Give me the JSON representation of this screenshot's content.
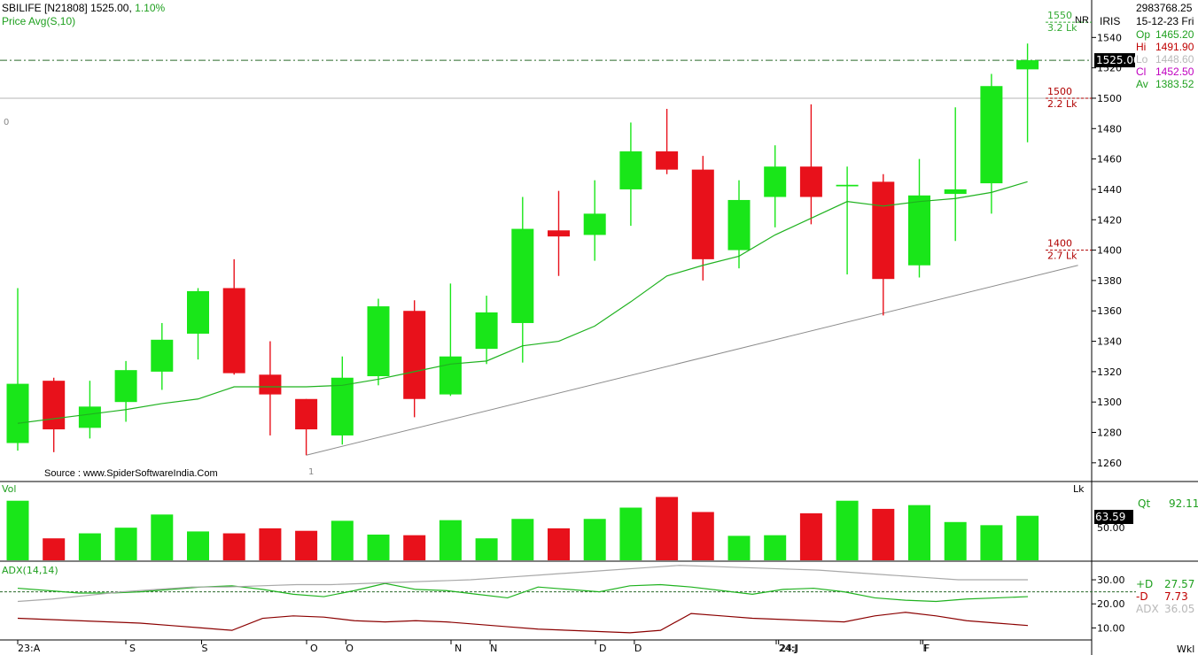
{
  "header": {
    "symbol": "SBILIFE [N21808]",
    "price": "1525.00,",
    "change": "1.10%",
    "indicator": "Price Avg(S,10)"
  },
  "info": {
    "volume_total": "2983768.25",
    "date": "15-12-23 Fri",
    "brand": "IRIS",
    "flag": "NR",
    "op_label": "Op",
    "op_value": "1465.20",
    "hi_label": "Hi",
    "hi_value": "1491.90",
    "lo_label": "Lo",
    "lo_value": "1448.60",
    "cl_label": "Cl",
    "cl_value": "1452.50",
    "av_label": "Av",
    "av_value": "1383.52"
  },
  "source": "Source : www.SpiderSoftwareIndia.Com",
  "colors": {
    "up": "#19e619",
    "down": "#e8111b",
    "ma": "#1fb21f",
    "trend": "#8c8c8c"
  },
  "chart_data": [
    {
      "type": "candlestick",
      "series": [
        {
          "name": "SBILIFE"
        }
      ],
      "x": [
        "23:A",
        "",
        "",
        "",
        "",
        "S",
        "",
        "",
        "",
        "O",
        "",
        "",
        "",
        "N",
        "",
        "",
        "",
        "D",
        "",
        "",
        "",
        "24:J",
        "",
        "",
        "",
        "F",
        "",
        "",
        ""
      ],
      "open": [
        1273,
        1314,
        1283,
        1300,
        1320,
        1345,
        1375,
        1318,
        1302,
        1278,
        1317,
        1360,
        1305,
        1335,
        1352,
        1413,
        1410,
        1440,
        1465,
        1453,
        1400,
        1435,
        1455,
        1442,
        1445,
        1390,
        1437,
        1444,
        1519
      ],
      "high": [
        1375,
        1316,
        1314,
        1327,
        1352,
        1375,
        1394,
        1340,
        1302,
        1330,
        1368,
        1367,
        1378,
        1370,
        1435,
        1439,
        1446,
        1484,
        1493,
        1462,
        1446,
        1469,
        1496,
        1455,
        1450,
        1460,
        1494,
        1516,
        1536
      ],
      "low": [
        1268,
        1267,
        1276,
        1287,
        1308,
        1328,
        1318,
        1278,
        1265,
        1272,
        1311,
        1290,
        1304,
        1325,
        1326,
        1383,
        1393,
        1416,
        1450,
        1380,
        1388,
        1415,
        1417,
        1384,
        1357,
        1382,
        1406,
        1424,
        1471
      ],
      "close": [
        1312,
        1282,
        1297,
        1321,
        1341,
        1373,
        1319,
        1305,
        1282,
        1316,
        1363,
        1302,
        1330,
        1359,
        1414,
        1409,
        1424,
        1465,
        1453,
        1394,
        1433,
        1455,
        1435,
        1443,
        1381,
        1436,
        1440,
        1508,
        1525
      ],
      "ma10": [
        1286,
        1289,
        1292,
        1295,
        1299,
        1302,
        1310,
        1310,
        1310,
        1311,
        1315,
        1320,
        1325,
        1327,
        1337,
        1340,
        1350,
        1366,
        1383,
        1390,
        1396,
        1410,
        1421,
        1432,
        1429,
        1432,
        1434,
        1438,
        1445
      ],
      "ylim": [
        1250,
        1560
      ],
      "yticks": [
        1260,
        1280,
        1300,
        1320,
        1340,
        1360,
        1380,
        1400,
        1420,
        1440,
        1460,
        1480,
        1500,
        1520,
        1540
      ],
      "trendline": {
        "from_x": 8,
        "from_y": 1265,
        "to_x": 29.4,
        "to_y": 1390
      },
      "levels": [
        {
          "price": 1550,
          "label": "1550",
          "sub": "3.2 Lk",
          "color": "#33aa33"
        },
        {
          "price": 1500,
          "label": "1500",
          "sub": "2.2 Lk",
          "color": "#b00000"
        },
        {
          "price": 1400,
          "label": "1400",
          "sub": "2.7 Lk",
          "color": "#b00000"
        }
      ],
      "current_price": "1525.00",
      "pivot_labels": [
        "0",
        "1"
      ]
    },
    {
      "type": "bar",
      "name": "Vol",
      "unit": "Lk",
      "values": [
        9.5,
        3.5,
        4.3,
        5.2,
        7.3,
        4.6,
        4.3,
        5.1,
        4.7,
        6.3,
        4.1,
        4.0,
        6.4,
        3.5,
        6.6,
        5.1,
        6.6,
        8.4,
        10.1,
        7.7,
        3.9,
        4.0,
        7.5,
        9.5,
        8.2,
        8.8,
        6.1,
        5.6,
        7.1
      ],
      "ylim": [
        0,
        12
      ],
      "qt_label": "Qt",
      "qt_value": "92.11",
      "current_box": "63.59",
      "ytick": "50.00"
    },
    {
      "type": "line",
      "name": "ADX(14,14)",
      "series": [
        {
          "name": "+D",
          "value": "27.57",
          "color": "#1fb21f",
          "values": [
            26.5,
            25.5,
            24.5,
            24.5,
            25,
            26,
            27,
            27.5,
            26,
            24,
            23,
            25.5,
            28.5,
            26,
            25.5,
            24,
            22.5,
            27,
            26,
            25,
            27.5,
            28,
            27,
            25.5,
            24,
            26,
            26.5,
            25,
            22.5,
            21.5,
            21,
            22,
            22.5,
            23
          ]
        },
        {
          "name": "-D",
          "value": "7.73",
          "color": "#8b0000",
          "values": [
            14,
            13.5,
            13,
            12.5,
            12,
            11,
            10,
            9,
            14,
            15,
            14.5,
            13,
            12.5,
            13,
            12.5,
            11.5,
            10.5,
            9.5,
            9,
            8.5,
            8,
            9,
            16,
            15,
            14,
            13.5,
            13,
            12.5,
            15,
            16.5,
            15,
            13,
            12,
            11
          ]
        },
        {
          "name": "ADX",
          "value": "36.05",
          "color": "#a9a9a9",
          "values": [
            21,
            22,
            23.5,
            25,
            26,
            27,
            27,
            27.5,
            28,
            28,
            28.5,
            29,
            29.5,
            30,
            31,
            32,
            33,
            34,
            35,
            36,
            35.5,
            35,
            34.5,
            34,
            33,
            32,
            31,
            30,
            30,
            30
          ]
        }
      ],
      "ylim": [
        5,
        37
      ],
      "yticks": [
        "10.00",
        "20.00",
        "30.00"
      ],
      "dashed_level": 25
    }
  ]
}
